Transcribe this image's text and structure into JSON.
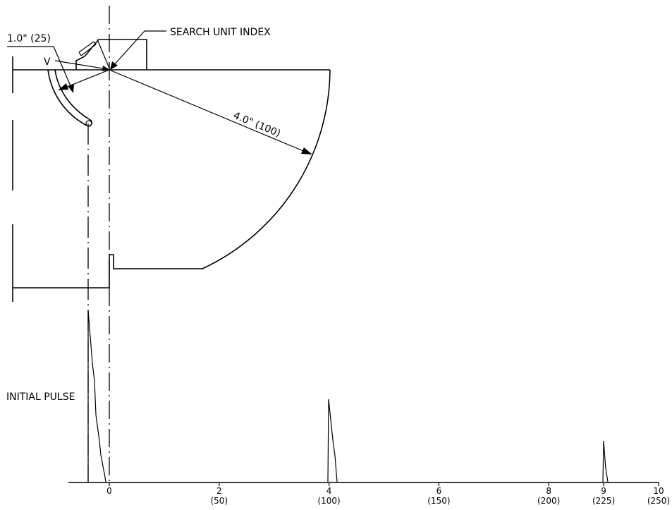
{
  "labels": {
    "search_unit_index": "SEARCH UNIT INDEX",
    "v_mark": "V",
    "small_radius": "1.0\" (25)",
    "large_radius": "4.0\" (100)",
    "initial_pulse": "INITIAL PULSE"
  },
  "axis": {
    "ticks": [
      {
        "value": 0,
        "main": "0",
        "sub": ""
      },
      {
        "value": 2,
        "main": "2",
        "sub": "(50)"
      },
      {
        "value": 4,
        "main": "4",
        "sub": "(100)"
      },
      {
        "value": 6,
        "main": "6",
        "sub": "(150)"
      },
      {
        "value": 8,
        "main": "8",
        "sub": "(200)"
      },
      {
        "value": 9,
        "main": "9",
        "sub": "(225)"
      },
      {
        "value": 10,
        "main": "10",
        "sub": "(250)"
      }
    ]
  }
}
